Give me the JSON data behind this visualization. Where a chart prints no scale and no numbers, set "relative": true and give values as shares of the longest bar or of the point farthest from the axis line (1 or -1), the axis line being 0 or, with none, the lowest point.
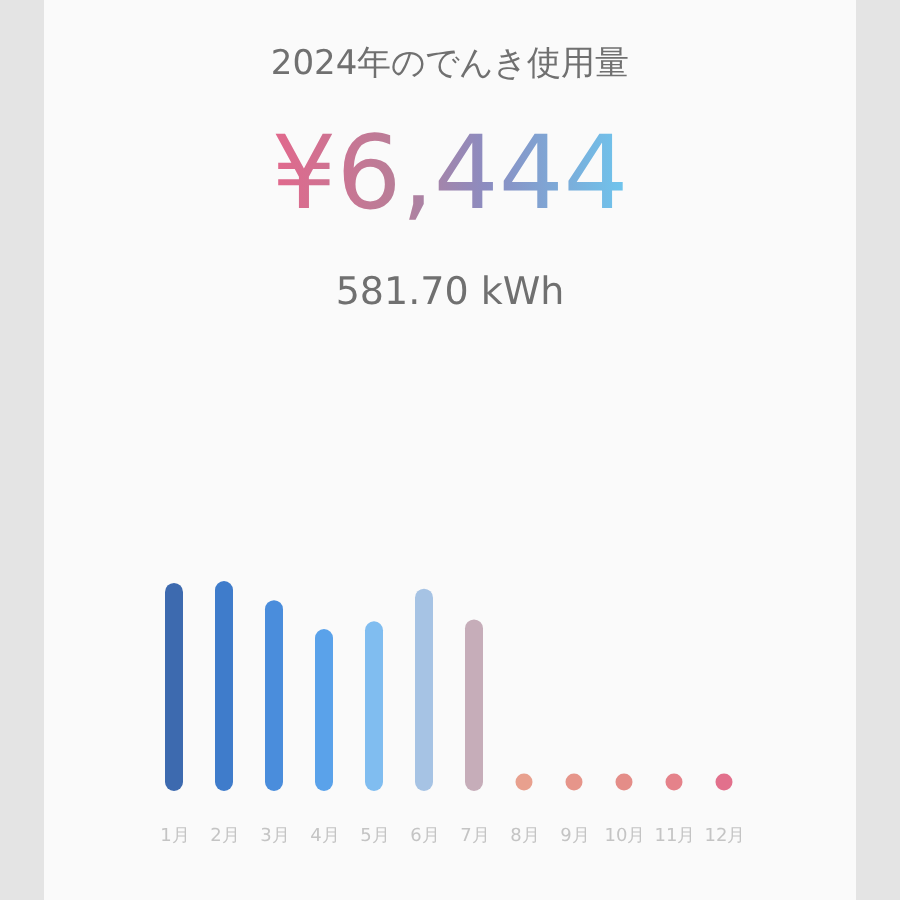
{
  "chart_data": {
    "type": "bar",
    "title": "2024年のでんき使用量",
    "annotations": [
      "¥6,444",
      "581.70 kWh"
    ],
    "categories": [
      "1月",
      "2月",
      "3月",
      "4月",
      "5月",
      "6月",
      "7月",
      "8月",
      "9月",
      "10月",
      "11月",
      "12月"
    ],
    "series": [
      {
        "values": [
          0.99,
          1,
          0.9,
          0.75,
          0.79,
          0.96,
          0.8,
          null,
          null,
          null,
          null,
          null
        ],
        "colors": [
          "#3d6aaf",
          "#3f7ccb",
          "#4a8ddc",
          "#5aa2ea",
          "#80bdf0",
          "#a6c3e4",
          "#c6adb9",
          null,
          null,
          null,
          null,
          null
        ]
      },
      {
        "type": "scatter",
        "marker": "circle",
        "values": [
          null,
          null,
          null,
          null,
          null,
          null,
          null,
          0,
          0,
          0,
          0,
          0
        ],
        "colors": [
          null,
          null,
          null,
          null,
          null,
          null,
          null,
          "#e8a08e",
          "#e6958a",
          "#e48d88",
          "#e5828a",
          "#e2708c"
        ]
      }
    ],
    "relative": true
  }
}
